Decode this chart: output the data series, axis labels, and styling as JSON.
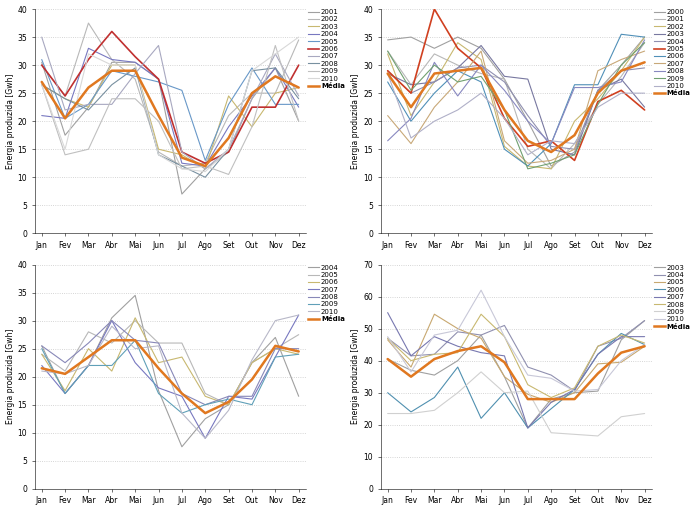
{
  "months": [
    "Jan",
    "Fev",
    "Mar",
    "Abr",
    "Mai",
    "Jun",
    "Jul",
    "Ago",
    "Set",
    "Out",
    "Nov",
    "Dez"
  ],
  "ylabel": "Energia produzida [Gwh]",
  "grid_color": "#c8c8c8",
  "background_color": "#ffffff",
  "panel1": {
    "ylim": [
      0,
      40
    ],
    "yticks": [
      0,
      5,
      10,
      15,
      20,
      25,
      30,
      35,
      40
    ],
    "series": {
      "2001": {
        "color": "#a0a0a0",
        "lw": 0.8,
        "data": [
          30.5,
          17.5,
          22.5,
          30.5,
          30.5,
          27.5,
          7.0,
          11.5,
          14.5,
          24.0,
          29.5,
          20.0
        ]
      },
      "2002": {
        "color": "#b8b8b8",
        "lw": 0.8,
        "data": [
          30.0,
          24.5,
          37.5,
          31.0,
          27.5,
          14.5,
          12.0,
          12.5,
          21.0,
          25.0,
          25.0,
          34.5
        ]
      },
      "2003": {
        "color": "#c8b870",
        "lw": 0.8,
        "data": [
          26.5,
          24.0,
          22.5,
          30.0,
          30.0,
          15.0,
          14.0,
          11.5,
          24.5,
          19.0,
          25.0,
          26.0
        ]
      },
      "2004": {
        "color": "#7878c0",
        "lw": 0.8,
        "data": [
          21.0,
          20.5,
          33.0,
          31.0,
          30.5,
          27.5,
          12.5,
          12.0,
          19.0,
          24.5,
          29.5,
          22.5
        ]
      },
      "2005": {
        "color": "#6898c8",
        "lw": 0.8,
        "data": [
          31.0,
          20.5,
          23.0,
          29.0,
          28.0,
          27.0,
          25.5,
          13.0,
          23.0,
          29.5,
          23.0,
          23.0
        ]
      },
      "2006": {
        "color": "#c03030",
        "lw": 1.2,
        "data": [
          30.0,
          24.5,
          31.0,
          36.0,
          31.5,
          27.5,
          14.5,
          12.5,
          14.5,
          22.5,
          22.5,
          30.0
        ]
      },
      "2007": {
        "color": "#a8a8c0",
        "lw": 0.8,
        "data": [
          35.0,
          22.0,
          23.0,
          23.0,
          28.5,
          33.5,
          14.5,
          11.5,
          15.0,
          24.0,
          32.0,
          24.5
        ]
      },
      "2008": {
        "color": "#7890a0",
        "lw": 0.8,
        "data": [
          26.5,
          24.0,
          22.0,
          26.5,
          29.5,
          14.0,
          12.0,
          10.0,
          15.0,
          29.0,
          29.5,
          24.0
        ]
      },
      "2009": {
        "color": "#c0c0c0",
        "lw": 0.8,
        "data": [
          26.5,
          14.0,
          15.0,
          24.0,
          24.0,
          20.0,
          11.5,
          12.0,
          10.5,
          19.0,
          33.5,
          20.0
        ]
      },
      "2010": {
        "color": "#d8d8d8",
        "lw": 0.8,
        "data": [
          26.5,
          15.0,
          32.0,
          30.0,
          30.0,
          14.0,
          11.5,
          11.0,
          15.0,
          29.0,
          32.0,
          35.0
        ]
      },
      "Média": {
        "color": "#e07820",
        "lw": 1.8,
        "data": [
          27.0,
          20.5,
          26.0,
          29.0,
          29.0,
          21.0,
          13.5,
          12.0,
          17.0,
          25.0,
          28.0,
          26.0
        ]
      }
    },
    "legend_order": [
      "2001",
      "2002",
      "2003",
      "2004",
      "2005",
      "2006",
      "2007",
      "2008",
      "2009",
      "2010",
      "Média"
    ]
  },
  "panel2": {
    "ylim": [
      0,
      40
    ],
    "yticks": [
      0,
      5,
      10,
      15,
      20,
      25,
      30,
      35,
      40
    ],
    "series": {
      "2000": {
        "color": "#a0a0a0",
        "lw": 0.8,
        "data": [
          34.5,
          35.0,
          33.0,
          35.0,
          33.0,
          27.5,
          20.0,
          12.0,
          14.5,
          25.5,
          30.0,
          35.0
        ]
      },
      "2001": {
        "color": "#b8b8b8",
        "lw": 0.8,
        "data": [
          32.5,
          26.5,
          32.0,
          30.0,
          28.5,
          27.5,
          15.0,
          11.5,
          16.0,
          23.0,
          28.0,
          34.0
        ]
      },
      "2002": {
        "color": "#c8b870",
        "lw": 0.8,
        "data": [
          32.0,
          21.0,
          27.0,
          34.0,
          31.0,
          15.5,
          12.0,
          11.5,
          20.0,
          24.0,
          29.0,
          35.0
        ]
      },
      "2003": {
        "color": "#7878a0",
        "lw": 0.8,
        "data": [
          28.5,
          26.5,
          27.0,
          29.5,
          33.5,
          28.0,
          27.5,
          15.0,
          14.0,
          25.5,
          27.5,
          22.5
        ]
      },
      "2004": {
        "color": "#9090b0",
        "lw": 0.8,
        "data": [
          29.0,
          25.0,
          27.0,
          29.5,
          30.0,
          27.0,
          21.0,
          15.5,
          15.0,
          25.5,
          29.0,
          29.5
        ]
      },
      "2005": {
        "color": "#d04020",
        "lw": 1.2,
        "data": [
          29.0,
          25.0,
          40.0,
          33.0,
          29.5,
          20.5,
          15.5,
          16.5,
          13.0,
          23.5,
          25.5,
          22.0
        ]
      },
      "2006": {
        "color": "#5090b8",
        "lw": 0.8,
        "data": [
          27.0,
          20.0,
          25.0,
          29.0,
          27.0,
          15.0,
          12.0,
          16.0,
          26.5,
          26.5,
          35.5,
          35.0
        ]
      },
      "2007": {
        "color": "#c8a878",
        "lw": 0.8,
        "data": [
          21.0,
          16.0,
          22.5,
          27.0,
          32.5,
          16.5,
          12.5,
          13.0,
          15.0,
          29.0,
          31.0,
          32.5
        ]
      },
      "2008": {
        "color": "#8888c0",
        "lw": 0.8,
        "data": [
          16.5,
          20.5,
          30.5,
          24.5,
          30.0,
          25.5,
          20.0,
          16.0,
          26.0,
          26.0,
          27.0,
          34.5
        ]
      },
      "2009": {
        "color": "#70a070",
        "lw": 0.8,
        "data": [
          32.5,
          25.5,
          30.0,
          27.0,
          28.0,
          22.0,
          11.5,
          12.5,
          14.0,
          23.0,
          30.0,
          34.0
        ]
      },
      "2010": {
        "color": "#b0b0c8",
        "lw": 0.8,
        "data": [
          28.5,
          17.0,
          20.0,
          22.0,
          25.0,
          20.5,
          14.0,
          16.5,
          16.0,
          22.5,
          25.0,
          25.0
        ]
      },
      "Média": {
        "color": "#e07820",
        "lw": 1.8,
        "data": [
          28.5,
          22.5,
          28.5,
          29.0,
          29.5,
          22.0,
          16.5,
          14.5,
          17.5,
          25.0,
          29.0,
          30.5
        ]
      }
    },
    "legend_order": [
      "2000",
      "2001",
      "2002",
      "2003",
      "2004",
      "2005",
      "2006",
      "2007",
      "2008",
      "2009",
      "2010",
      "Média"
    ]
  },
  "panel3": {
    "ylim": [
      0,
      40
    ],
    "yticks": [
      0,
      5,
      10,
      15,
      20,
      25,
      30,
      35,
      40
    ],
    "series": {
      "2004": {
        "color": "#a0a0a0",
        "lw": 0.8,
        "data": [
          25.5,
          17.0,
          22.0,
          30.5,
          34.5,
          17.5,
          7.5,
          12.5,
          15.0,
          22.5,
          27.0,
          16.5
        ]
      },
      "2005": {
        "color": "#b8b8b8",
        "lw": 0.8,
        "data": [
          24.0,
          21.0,
          28.0,
          26.0,
          30.0,
          26.0,
          26.0,
          17.0,
          15.0,
          22.5,
          25.0,
          27.5
        ]
      },
      "2006": {
        "color": "#c8b870",
        "lw": 0.8,
        "data": [
          24.0,
          17.5,
          25.0,
          21.0,
          30.5,
          22.5,
          23.5,
          16.5,
          15.0,
          22.5,
          25.0,
          24.0
        ]
      },
      "2007": {
        "color": "#7878c0",
        "lw": 0.8,
        "data": [
          22.0,
          17.0,
          22.0,
          30.0,
          22.5,
          18.0,
          16.5,
          9.0,
          16.5,
          16.0,
          23.5,
          31.0
        ]
      },
      "2008": {
        "color": "#8888b8",
        "lw": 0.8,
        "data": [
          25.5,
          22.5,
          26.0,
          30.0,
          26.5,
          26.0,
          17.0,
          15.0,
          16.5,
          16.5,
          25.0,
          25.0
        ]
      },
      "2009": {
        "color": "#60a0b8",
        "lw": 0.8,
        "data": [
          25.0,
          17.0,
          22.0,
          22.0,
          26.5,
          17.0,
          13.5,
          15.0,
          16.0,
          15.0,
          23.5,
          24.0
        ]
      },
      "2010": {
        "color": "#b8b8c8",
        "lw": 0.8,
        "data": [
          21.0,
          20.5,
          22.0,
          29.0,
          25.0,
          25.5,
          13.5,
          9.0,
          14.0,
          23.0,
          30.0,
          31.0
        ]
      },
      "Média": {
        "color": "#e07820",
        "lw": 1.8,
        "data": [
          21.5,
          20.5,
          23.5,
          26.5,
          26.5,
          21.5,
          17.0,
          13.5,
          15.5,
          19.5,
          25.5,
          24.5
        ]
      }
    },
    "legend_order": [
      "2004",
      "2005",
      "2006",
      "2007",
      "2008",
      "2009",
      "2010",
      "Média"
    ]
  },
  "panel4": {
    "ylim": [
      0,
      70
    ],
    "yticks": [
      0,
      10,
      20,
      30,
      40,
      50,
      60,
      70
    ],
    "series": {
      "2003": {
        "color": "#a0a0a0",
        "lw": 0.8,
        "data": [
          40.5,
          37.0,
          35.5,
          40.0,
          48.0,
          35.0,
          19.0,
          28.0,
          30.0,
          30.5,
          46.5,
          52.5
        ]
      },
      "2004": {
        "color": "#9090b0",
        "lw": 0.8,
        "data": [
          47.0,
          41.5,
          42.0,
          49.0,
          48.0,
          51.0,
          38.0,
          35.5,
          30.5,
          44.5,
          47.0,
          52.5
        ]
      },
      "2005": {
        "color": "#c8a870",
        "lw": 0.8,
        "data": [
          46.5,
          38.0,
          54.5,
          50.0,
          47.0,
          35.0,
          29.5,
          27.0,
          30.0,
          39.0,
          39.5,
          44.5
        ]
      },
      "2006": {
        "color": "#5090b0",
        "lw": 0.8,
        "data": [
          30.0,
          24.0,
          28.5,
          38.0,
          22.0,
          30.0,
          19.0,
          25.0,
          31.0,
          42.0,
          48.5,
          45.0
        ]
      },
      "2007": {
        "color": "#7878b0",
        "lw": 0.8,
        "data": [
          55.0,
          41.5,
          47.5,
          44.5,
          42.5,
          41.5,
          19.0,
          27.0,
          31.0,
          42.0,
          47.5,
          47.5
        ]
      },
      "2008": {
        "color": "#c8b870",
        "lw": 0.8,
        "data": [
          47.0,
          40.0,
          42.0,
          42.5,
          54.5,
          47.5,
          32.5,
          28.5,
          31.5,
          44.5,
          48.0,
          45.5
        ]
      },
      "2009": {
        "color": "#d0d0d0",
        "lw": 0.8,
        "data": [
          23.5,
          23.5,
          24.5,
          30.0,
          36.5,
          30.0,
          30.5,
          17.5,
          17.0,
          16.5,
          22.5,
          23.5
        ]
      },
      "2010": {
        "color": "#c8c8d8",
        "lw": 0.8,
        "data": [
          47.5,
          36.5,
          48.0,
          49.5,
          62.0,
          47.5,
          35.5,
          34.5,
          30.5,
          31.0,
          40.0,
          45.0
        ]
      },
      "Média": {
        "color": "#e07820",
        "lw": 1.8,
        "data": [
          40.5,
          35.0,
          40.5,
          43.0,
          44.5,
          39.5,
          28.0,
          28.0,
          28.0,
          36.0,
          42.5,
          44.5
        ]
      }
    },
    "legend_order": [
      "2003",
      "2004",
      "2005",
      "2006",
      "2007",
      "2008",
      "2009",
      "2010",
      "Média"
    ]
  }
}
